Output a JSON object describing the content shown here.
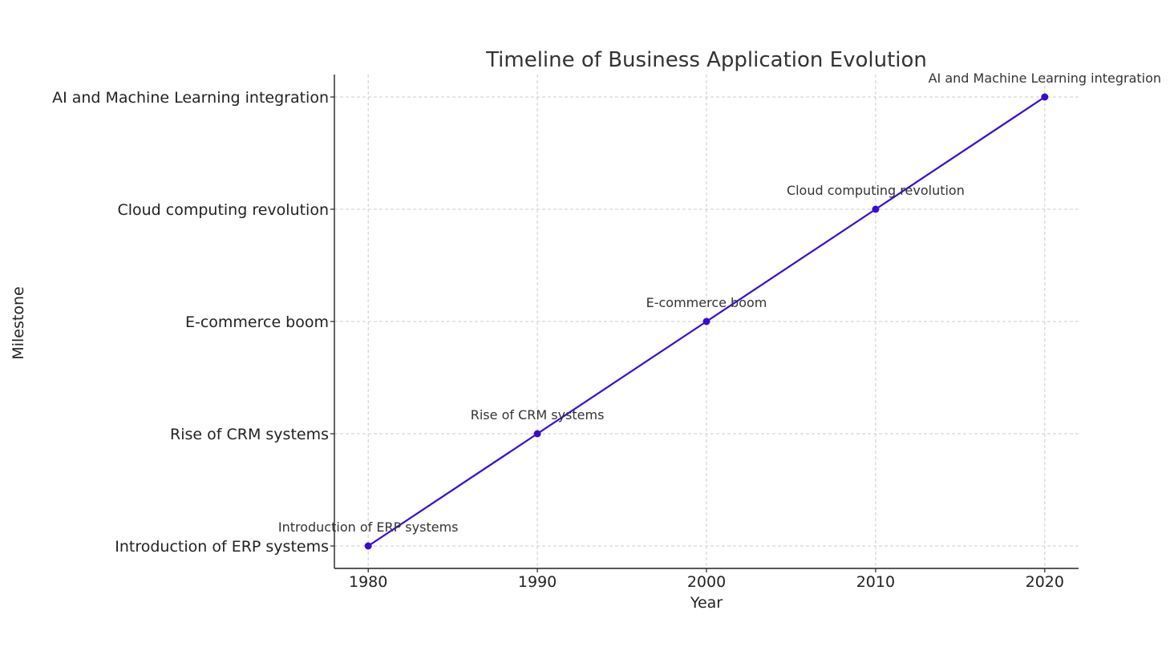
{
  "chart_data": {
    "type": "line",
    "title": "Timeline of Business Application Evolution",
    "xlabel": "Year",
    "ylabel": "Milestone",
    "x": [
      1980,
      1990,
      2000,
      2010,
      2020
    ],
    "x_ticks": [
      "1980",
      "1990",
      "2000",
      "2010",
      "2020"
    ],
    "xlim": [
      1978,
      2022
    ],
    "categories": [
      "Introduction of ERP systems",
      "Rise of CRM systems",
      "E-commerce boom",
      "Cloud computing revolution",
      "AI and Machine Learning integration"
    ],
    "series": [
      {
        "values": [
          "Introduction of ERP systems",
          "Rise of CRM systems",
          "E-commerce boom",
          "Cloud computing revolution",
          "AI and Machine Learning integration"
        ],
        "color": "#3a0ad6",
        "marker": "circle"
      }
    ],
    "annotations": [
      "Introduction of ERP systems",
      "Rise of CRM systems",
      "E-commerce boom",
      "Cloud computing revolution",
      "AI and Machine Learning integration"
    ],
    "grid": true,
    "grid_style": "dashed",
    "legend": "none"
  }
}
